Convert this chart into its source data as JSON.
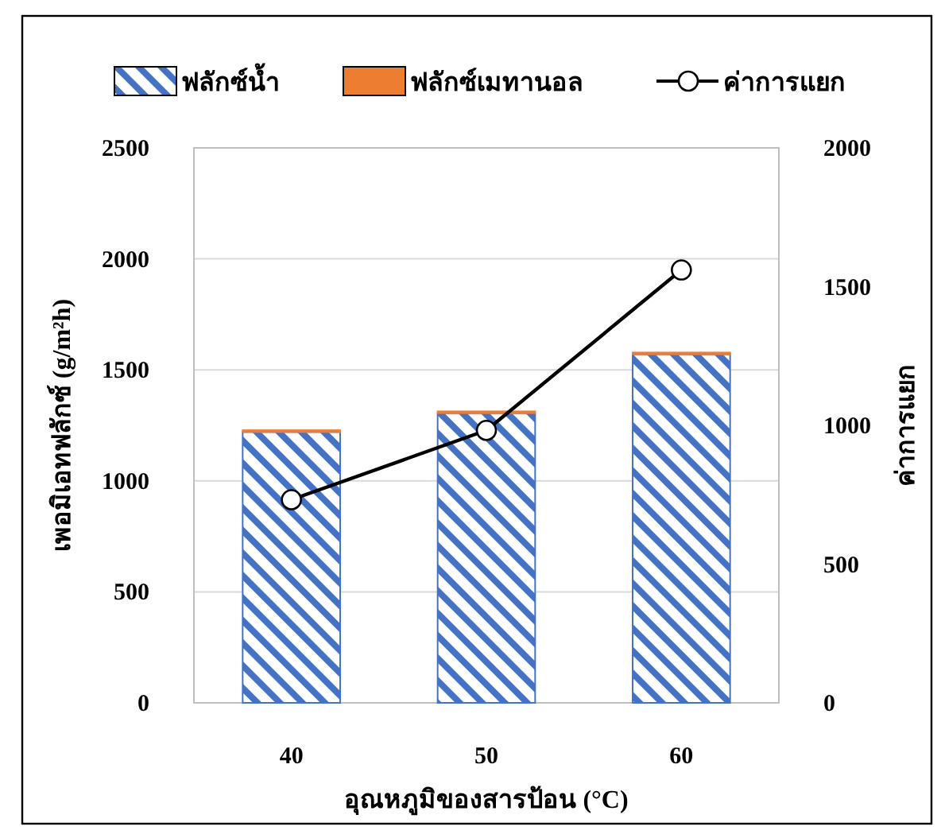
{
  "chart_data": {
    "type": "bar",
    "stacked": true,
    "categories": [
      "40",
      "50",
      "60"
    ],
    "xlabel": "อุณหภูมิของสารป้อน (°C)",
    "ylabel": "เพอมิเอทฟลักซ์ (g/m²h)",
    "y2label": "ค่าการแยก",
    "series": [
      {
        "name": "ฟลักซ์น้ำ",
        "color": "#4472c4",
        "values": [
          1220,
          1305,
          1570
        ]
      },
      {
        "name": "ฟลักซ์เมทานอล",
        "color": "#ed7d31",
        "values": [
          8,
          8,
          8
        ]
      },
      {
        "name": "ค่าการแยก",
        "type": "line",
        "axis": "y2",
        "color": "#000000",
        "marker": "circle",
        "values": [
          732,
          982,
          1560
        ]
      }
    ],
    "ylim": [
      0,
      2500
    ],
    "yticks": [
      0,
      500,
      1000,
      1500,
      2000,
      2500
    ],
    "y2lim": [
      0,
      2000
    ],
    "y2ticks": [
      0,
      500,
      1000,
      1500,
      2000
    ],
    "grid": "y",
    "legend": "top"
  }
}
